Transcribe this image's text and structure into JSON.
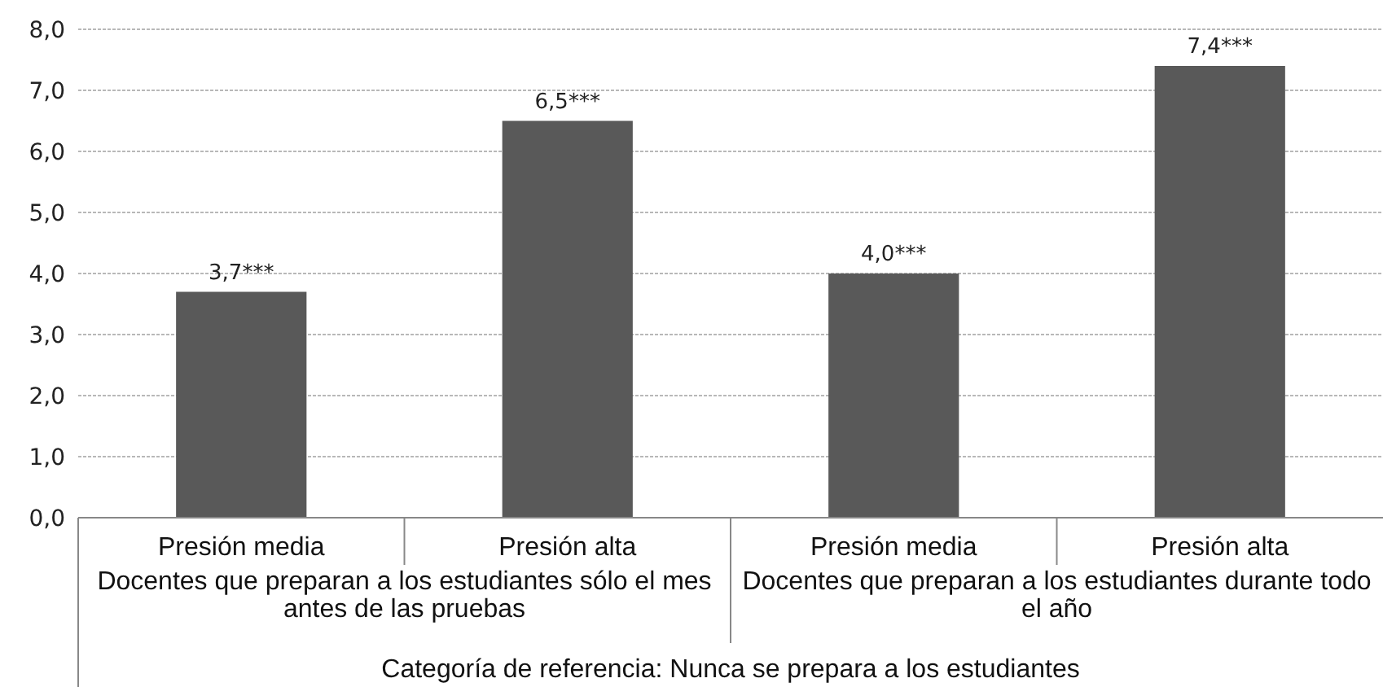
{
  "chart_data": {
    "type": "bar",
    "categories": [
      "Presión media",
      "Presión alta",
      "Presión media",
      "Presión alta"
    ],
    "values": [
      3.7,
      6.5,
      4.0,
      7.4
    ],
    "value_labels": [
      "3,7***",
      "6,5***",
      "4,0***",
      "7,4***"
    ],
    "color": "#595959",
    "ylim": [
      0,
      8
    ],
    "yticks": [
      {
        "value": 0,
        "label": "0,0"
      },
      {
        "value": 1,
        "label": "1,0"
      },
      {
        "value": 2,
        "label": "2,0"
      },
      {
        "value": 3,
        "label": "3,0"
      },
      {
        "value": 4,
        "label": "4,0"
      },
      {
        "value": 5,
        "label": "5,0"
      },
      {
        "value": 6,
        "label": "6,0"
      },
      {
        "value": 7,
        "label": "7,0"
      },
      {
        "value": 8,
        "label": "8,0"
      }
    ],
    "grid": "y",
    "xlabel": "Categoría de referencia: Nunca se prepara a los estudiantes",
    "annotations": [
      "Docentes que preparan a los estudiantes sólo el mes antes de las pruebas",
      "Docentes que preparan a los estudiantes durante todo el año"
    ]
  }
}
